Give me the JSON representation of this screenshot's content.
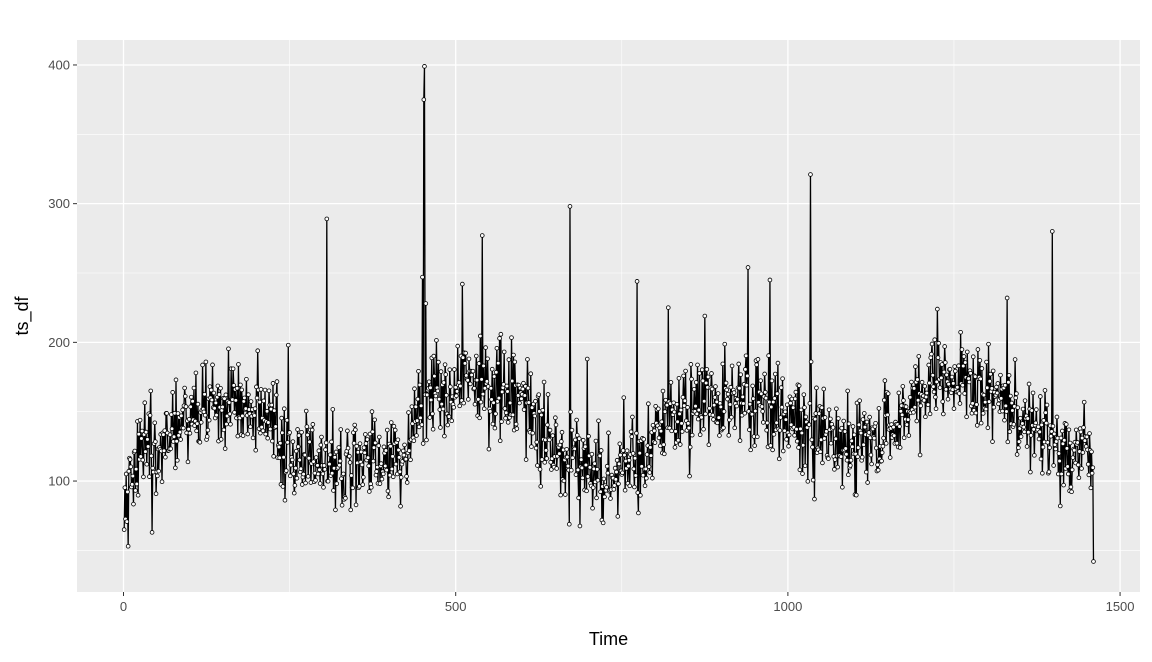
{
  "chart_data": {
    "type": "line",
    "title": "",
    "xlabel": "Time",
    "ylabel": "ts_df",
    "xlim": [
      -70,
      1530
    ],
    "ylim": [
      20,
      418
    ],
    "x_ticks": [
      0,
      500,
      1000,
      1500
    ],
    "x_tick_labels": [
      "0",
      "500",
      "1000",
      "1500"
    ],
    "y_ticks": [
      100,
      200,
      300,
      400
    ],
    "y_tick_labels": [
      "100",
      "200",
      "300",
      "400"
    ],
    "grid": true,
    "legend": "none",
    "colors": {
      "panel": "#ebebeb",
      "grid_major": "#ffffff",
      "line": "#000000",
      "point_fill": "#ffffff"
    },
    "series": [
      {
        "x_start": 1,
        "x_end": 1460,
        "step": 1,
        "anchors": [
          [
            1,
            65
          ],
          [
            3,
            95
          ],
          [
            6,
            80
          ],
          [
            10,
            100
          ],
          [
            15,
            108
          ],
          [
            20,
            112
          ],
          [
            25,
            118
          ],
          [
            30,
            122
          ],
          [
            40,
            125
          ],
          [
            50,
            122
          ],
          [
            60,
            130
          ],
          [
            70,
            135
          ],
          [
            80,
            140
          ],
          [
            90,
            145
          ],
          [
            100,
            148
          ],
          [
            110,
            150
          ],
          [
            120,
            152
          ],
          [
            130,
            150
          ],
          [
            140,
            152
          ],
          [
            150,
            155
          ],
          [
            160,
            158
          ],
          [
            170,
            157
          ],
          [
            180,
            155
          ],
          [
            190,
            152
          ],
          [
            200,
            148
          ],
          [
            210,
            142
          ],
          [
            220,
            138
          ],
          [
            230,
            133
          ],
          [
            240,
            128
          ],
          [
            250,
            124
          ],
          [
            260,
            122
          ],
          [
            270,
            118
          ],
          [
            280,
            115
          ],
          [
            290,
            113
          ],
          [
            300,
            112
          ],
          [
            320,
            112
          ],
          [
            340,
            113
          ],
          [
            360,
            115
          ],
          [
            380,
            117
          ],
          [
            400,
            118
          ],
          [
            410,
            120
          ],
          [
            420,
            123
          ],
          [
            430,
            128
          ],
          [
            440,
            140
          ],
          [
            450,
            152
          ],
          [
            460,
            160
          ],
          [
            470,
            165
          ],
          [
            480,
            168
          ],
          [
            490,
            170
          ],
          [
            500,
            172
          ],
          [
            520,
            175
          ],
          [
            540,
            175
          ],
          [
            560,
            170
          ],
          [
            580,
            165
          ],
          [
            590,
            160
          ],
          [
            600,
            155
          ],
          [
            610,
            150
          ],
          [
            620,
            140
          ],
          [
            630,
            130
          ],
          [
            640,
            125
          ],
          [
            660,
            120
          ],
          [
            680,
            115
          ],
          [
            700,
            110
          ],
          [
            720,
            105
          ],
          [
            740,
            105
          ],
          [
            760,
            108
          ],
          [
            780,
            112
          ],
          [
            790,
            120
          ],
          [
            800,
            132
          ],
          [
            810,
            140
          ],
          [
            820,
            145
          ],
          [
            840,
            150
          ],
          [
            860,
            152
          ],
          [
            880,
            155
          ],
          [
            900,
            157
          ],
          [
            920,
            160
          ],
          [
            940,
            160
          ],
          [
            960,
            158
          ],
          [
            980,
            152
          ],
          [
            1000,
            145
          ],
          [
            1020,
            138
          ],
          [
            1040,
            132
          ],
          [
            1060,
            128
          ],
          [
            1080,
            125
          ],
          [
            1100,
            125
          ],
          [
            1120,
            128
          ],
          [
            1140,
            132
          ],
          [
            1160,
            140
          ],
          [
            1180,
            150
          ],
          [
            1200,
            160
          ],
          [
            1220,
            168
          ],
          [
            1240,
            172
          ],
          [
            1260,
            170
          ],
          [
            1280,
            168
          ],
          [
            1300,
            165
          ],
          [
            1320,
            160
          ],
          [
            1340,
            150
          ],
          [
            1360,
            140
          ],
          [
            1380,
            132
          ],
          [
            1400,
            125
          ],
          [
            1420,
            122
          ],
          [
            1440,
            120
          ],
          [
            1455,
            118
          ],
          [
            1460,
            110
          ]
        ],
        "noise_amplitude": 22,
        "overrides": [
          [
            1,
            65
          ],
          [
            41,
            165
          ],
          [
            43,
            63
          ],
          [
            248,
            198
          ],
          [
            306,
            289
          ],
          [
            450,
            247
          ],
          [
            452,
            375
          ],
          [
            453,
            399
          ],
          [
            455,
            228
          ],
          [
            510,
            242
          ],
          [
            540,
            277
          ],
          [
            672,
            298
          ],
          [
            698,
            188
          ],
          [
            773,
            244
          ],
          [
            775,
            77
          ],
          [
            820,
            225
          ],
          [
            875,
            219
          ],
          [
            940,
            254
          ],
          [
            973,
            245
          ],
          [
            1034,
            321
          ],
          [
            1035,
            186
          ],
          [
            1040,
            87
          ],
          [
            1225,
            224
          ],
          [
            1330,
            232
          ],
          [
            1398,
            280
          ],
          [
            1410,
            82
          ],
          [
            1460,
            42
          ]
        ]
      }
    ]
  }
}
